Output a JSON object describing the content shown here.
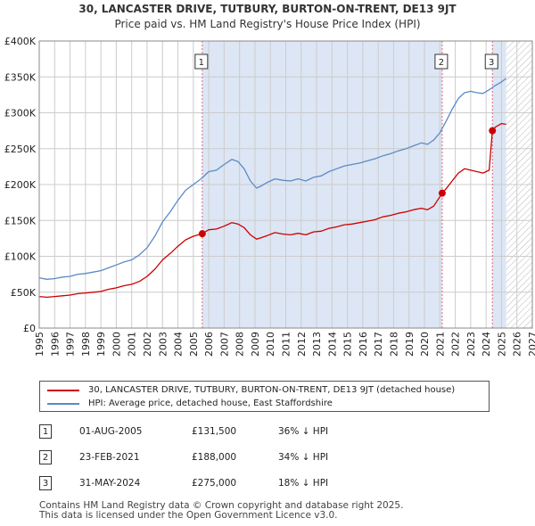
{
  "title_line1": "30, LANCASTER DRIVE, TUTBURY, BURTON-ON-TRENT, DE13 9JT",
  "title_line2": "Price paid vs. HM Land Registry's House Price Index (HPI)",
  "colors": {
    "property": "#cc0000",
    "hpi": "#5b8ac6",
    "shade": "#dde6f4",
    "marker_line": "#dd6677",
    "grid": "#cccccc"
  },
  "legend": [
    {
      "label": "30, LANCASTER DRIVE, TUTBURY, BURTON-ON-TRENT, DE13 9JT (detached house)",
      "color": "#cc0000"
    },
    {
      "label": "HPI: Average price, detached house, East Staffordshire",
      "color": "#5b8ac6"
    }
  ],
  "sales": [
    {
      "num": "1",
      "date": "01-AUG-2005",
      "price": "£131,500",
      "hpi": "36% ↓ HPI"
    },
    {
      "num": "2",
      "date": "23-FEB-2021",
      "price": "£188,000",
      "hpi": "34% ↓ HPI"
    },
    {
      "num": "3",
      "date": "31-MAY-2024",
      "price": "£275,000",
      "hpi": "18% ↓ HPI"
    }
  ],
  "footer_line1": "Contains HM Land Registry data © Crown copyright and database right 2025.",
  "footer_line2": "This data is licensed under the Open Government Licence v3.0.",
  "chart_data": {
    "type": "line",
    "title": "30, LANCASTER DRIVE, TUTBURY, BURTON-ON-TRENT, DE13 9JT — Price paid vs. HM Land Registry's House Price Index (HPI)",
    "xlabel": "",
    "ylabel": "",
    "xlim": [
      1995,
      2027
    ],
    "ylim": [
      0,
      400000
    ],
    "x_ticks": [
      1995,
      1996,
      1997,
      1998,
      1999,
      2000,
      2001,
      2002,
      2003,
      2004,
      2005,
      2006,
      2007,
      2008,
      2009,
      2010,
      2011,
      2012,
      2013,
      2014,
      2015,
      2016,
      2017,
      2018,
      2019,
      2020,
      2021,
      2022,
      2023,
      2024,
      2025,
      2026,
      2027
    ],
    "y_ticks": [
      {
        "value": 0,
        "label": "£0"
      },
      {
        "value": 50000,
        "label": "£50K"
      },
      {
        "value": 100000,
        "label": "£100K"
      },
      {
        "value": 150000,
        "label": "£150K"
      },
      {
        "value": 200000,
        "label": "£200K"
      },
      {
        "value": 250000,
        "label": "£250K"
      },
      {
        "value": 300000,
        "label": "£300K"
      },
      {
        "value": 350000,
        "label": "£350K"
      },
      {
        "value": 400000,
        "label": "£400K"
      }
    ],
    "grid": true,
    "sale_markers": [
      {
        "label": "1",
        "x": 2005.58,
        "price": 131500
      },
      {
        "label": "2",
        "x": 2021.15,
        "price": 188000
      },
      {
        "label": "3",
        "x": 2024.41,
        "price": 275000
      }
    ],
    "shaded_periods": [
      {
        "from": 2005.58,
        "to": 2021.15
      },
      {
        "from": 2024.41,
        "to": 2025.3
      }
    ],
    "forecast_hatch_from": 2025.3,
    "series": [
      {
        "name": "HPI: Average price, detached house, East Staffordshire",
        "x": [
          1995.0,
          1995.5,
          1996.0,
          1996.5,
          1997.0,
          1997.5,
          1998.0,
          1998.5,
          1999.0,
          1999.5,
          2000.0,
          2000.5,
          2001.0,
          2001.5,
          2002.0,
          2002.5,
          2003.0,
          2003.5,
          2004.0,
          2004.5,
          2005.0,
          2005.5,
          2006.0,
          2006.5,
          2007.0,
          2007.5,
          2007.9,
          2008.3,
          2008.7,
          2009.1,
          2009.4,
          2009.8,
          2010.3,
          2010.8,
          2011.3,
          2011.8,
          2012.3,
          2012.8,
          2013.3,
          2013.8,
          2014.3,
          2014.8,
          2015.3,
          2015.8,
          2016.3,
          2016.8,
          2017.3,
          2017.8,
          2018.3,
          2018.8,
          2019.3,
          2019.8,
          2020.2,
          2020.6,
          2021.0,
          2021.4,
          2021.8,
          2022.2,
          2022.6,
          2023.0,
          2023.4,
          2023.8,
          2024.2,
          2024.6,
          2025.0,
          2025.3
        ],
        "values": [
          70000,
          68000,
          69000,
          71000,
          72000,
          75000,
          76000,
          78000,
          80000,
          84000,
          88000,
          92000,
          95000,
          102000,
          112000,
          128000,
          148000,
          162000,
          178000,
          192000,
          200000,
          208000,
          218000,
          220000,
          228000,
          235000,
          232000,
          222000,
          205000,
          195000,
          198000,
          203000,
          208000,
          206000,
          205000,
          208000,
          205000,
          210000,
          212000,
          218000,
          222000,
          226000,
          228000,
          230000,
          233000,
          236000,
          240000,
          243000,
          247000,
          250000,
          254000,
          258000,
          256000,
          262000,
          272000,
          288000,
          305000,
          320000,
          328000,
          330000,
          328000,
          327000,
          332000,
          338000,
          343000,
          348000
        ]
      },
      {
        "name": "30, LANCASTER DRIVE, TUTBURY, BURTON-ON-TRENT, DE13 9JT (detached house)",
        "x": [
          1995.0,
          1995.5,
          1996.0,
          1996.5,
          1997.0,
          1997.5,
          1998.0,
          1998.5,
          1999.0,
          1999.5,
          2000.0,
          2000.5,
          2001.0,
          2001.5,
          2002.0,
          2002.5,
          2003.0,
          2003.5,
          2004.0,
          2004.5,
          2005.0,
          2005.58,
          2006.0,
          2006.5,
          2007.0,
          2007.5,
          2007.9,
          2008.3,
          2008.7,
          2009.1,
          2009.4,
          2009.8,
          2010.3,
          2010.8,
          2011.3,
          2011.8,
          2012.3,
          2012.8,
          2013.3,
          2013.8,
          2014.3,
          2014.8,
          2015.3,
          2015.8,
          2016.3,
          2016.8,
          2017.3,
          2017.8,
          2018.3,
          2018.8,
          2019.3,
          2019.8,
          2020.2,
          2020.6,
          2021.15,
          2021.4,
          2021.8,
          2022.2,
          2022.6,
          2023.0,
          2023.4,
          2023.8,
          2024.2,
          2024.41,
          2024.6,
          2025.0,
          2025.3
        ],
        "values": [
          44000,
          43000,
          44000,
          45000,
          46000,
          48000,
          49000,
          50000,
          51000,
          54000,
          56000,
          59000,
          61000,
          65000,
          72000,
          82000,
          95000,
          104000,
          114000,
          123000,
          128000,
          131500,
          137000,
          138000,
          142000,
          147000,
          145000,
          140000,
          130000,
          124000,
          126000,
          129000,
          133000,
          131000,
          130000,
          132000,
          130000,
          134000,
          135000,
          139000,
          141000,
          144000,
          145000,
          147000,
          149000,
          151000,
          155000,
          157000,
          160000,
          162000,
          165000,
          167000,
          165000,
          170000,
          188000,
          194000,
          205000,
          216000,
          222000,
          220000,
          218000,
          216000,
          220000,
          275000,
          280000,
          285000,
          284000
        ]
      }
    ]
  }
}
